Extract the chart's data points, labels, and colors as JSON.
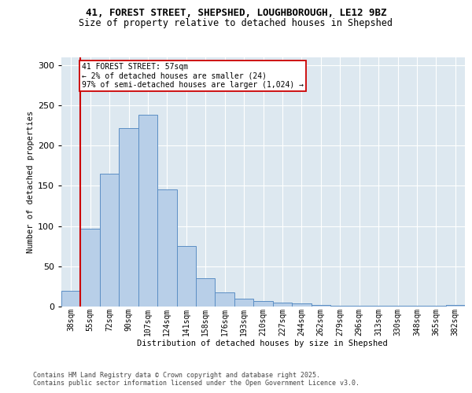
{
  "title_line1": "41, FOREST STREET, SHEPSHED, LOUGHBOROUGH, LE12 9BZ",
  "title_line2": "Size of property relative to detached houses in Shepshed",
  "xlabel": "Distribution of detached houses by size in Shepshed",
  "ylabel": "Number of detached properties",
  "categories": [
    "38sqm",
    "55sqm",
    "72sqm",
    "90sqm",
    "107sqm",
    "124sqm",
    "141sqm",
    "158sqm",
    "176sqm",
    "193sqm",
    "210sqm",
    "227sqm",
    "244sqm",
    "262sqm",
    "279sqm",
    "296sqm",
    "313sqm",
    "330sqm",
    "348sqm",
    "365sqm",
    "382sqm"
  ],
  "bar_heights": [
    20,
    97,
    165,
    222,
    238,
    145,
    75,
    35,
    18,
    10,
    7,
    5,
    4,
    2,
    1,
    1,
    1,
    1,
    1,
    1,
    2
  ],
  "bar_color": "#b8cfe8",
  "bar_edge_color": "#5b8ec4",
  "vline_color": "#cc0000",
  "vline_pos": 0.5,
  "annotation_text": "41 FOREST STREET: 57sqm\n← 2% of detached houses are smaller (24)\n97% of semi-detached houses are larger (1,024) →",
  "annotation_box_edgecolor": "#cc0000",
  "background_color": "#dde8f0",
  "ylim": [
    0,
    310
  ],
  "yticks": [
    0,
    50,
    100,
    150,
    200,
    250,
    300
  ],
  "footer": "Contains HM Land Registry data © Crown copyright and database right 2025.\nContains public sector information licensed under the Open Government Licence v3.0.",
  "title_fontsize": 9,
  "subtitle_fontsize": 8.5,
  "bar_label_fontsize": 7,
  "ylabel_fontsize": 7.5,
  "xlabel_fontsize": 7.5,
  "footer_fontsize": 6,
  "annot_fontsize": 7
}
